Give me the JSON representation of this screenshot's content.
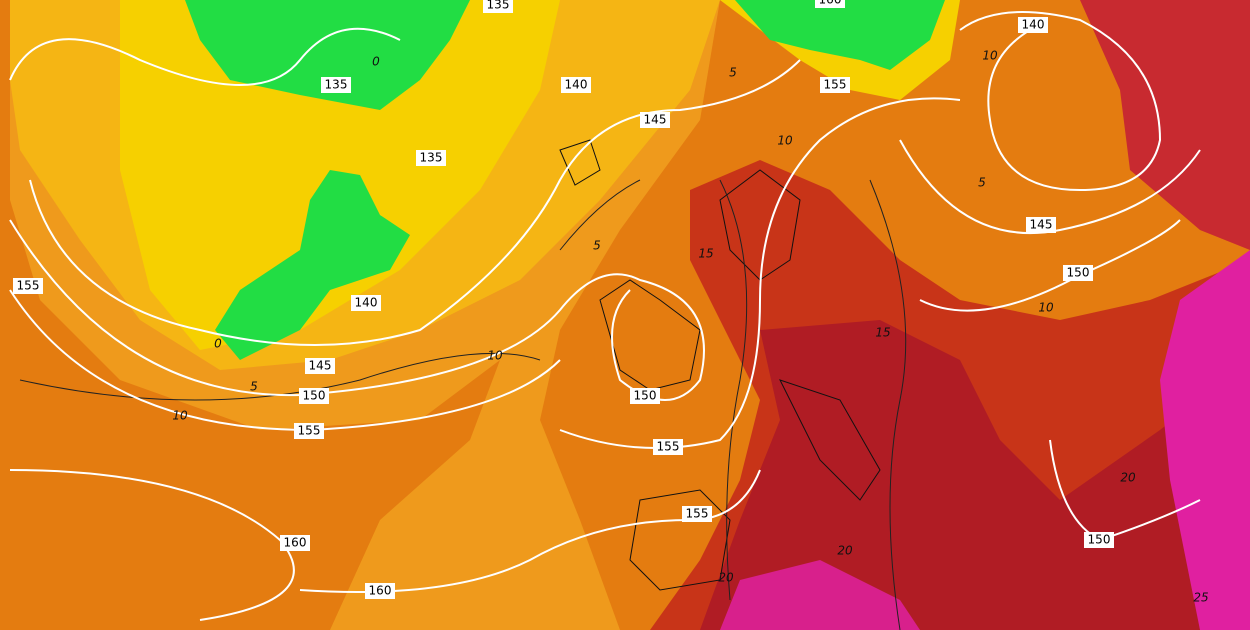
{
  "map": {
    "height_labels": [
      135,
      160,
      140,
      135,
      140,
      155,
      145,
      135,
      145,
      155,
      150,
      140,
      145,
      150,
      150,
      155,
      155,
      155,
      150,
      160,
      160
    ],
    "temperature_labels": [
      0,
      5,
      10,
      10,
      5,
      5,
      15,
      0,
      5,
      10,
      10,
      15,
      10,
      20,
      20,
      20,
      25
    ]
  }
}
